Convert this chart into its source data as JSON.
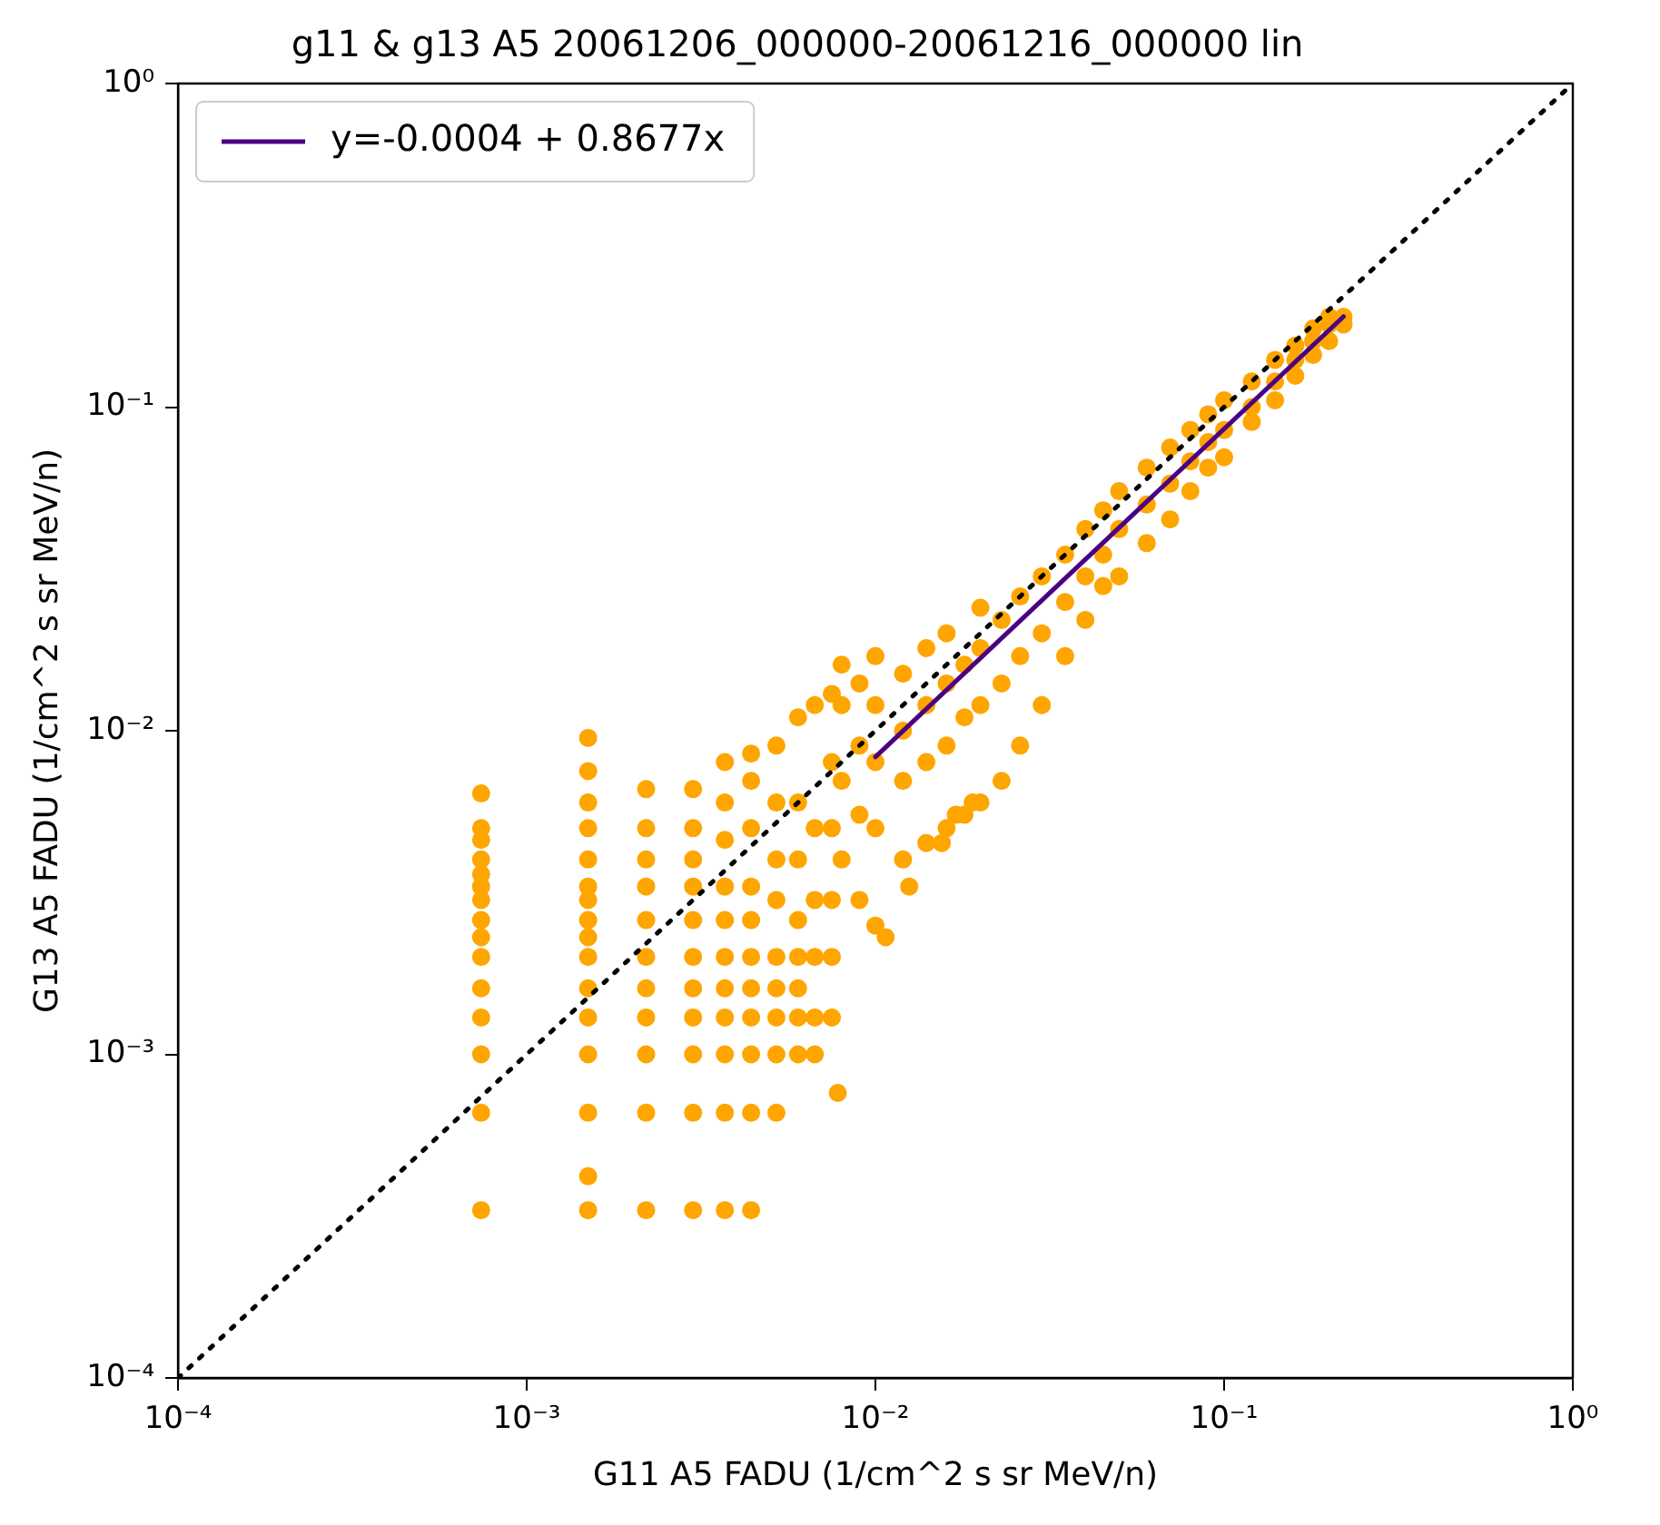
{
  "chart_data": {
    "type": "scatter",
    "title": "g11 & g13 A5 20061206_000000-20061216_000000 lin",
    "xlabel": "G11 A5 FADU (1/cm^2 s sr MeV/n)",
    "ylabel": "G13 A5 FADU (1/cm^2 s sr MeV/n)",
    "log": "xy",
    "grid": false,
    "legend": "top left",
    "xlim": [
      0.0001,
      1
    ],
    "ylim": [
      0.0001,
      1
    ],
    "xticks": [
      {
        "value": 0.0001,
        "label": "10⁻⁴"
      },
      {
        "value": 0.001,
        "label": "10⁻³"
      },
      {
        "value": 0.01,
        "label": "10⁻²"
      },
      {
        "value": 0.1,
        "label": "10⁻¹"
      },
      {
        "value": 1,
        "label": "10⁰"
      }
    ],
    "yticks": [
      {
        "value": 0.0001,
        "label": "10⁻⁴"
      },
      {
        "value": 0.001,
        "label": "10⁻³"
      },
      {
        "value": 0.01,
        "label": "10⁻²"
      },
      {
        "value": 0.1,
        "label": "10⁻¹"
      },
      {
        "value": 1,
        "label": "10⁰"
      }
    ],
    "series": [
      {
        "marker": "circle",
        "color": "#ffa500",
        "x": [
          0.00074,
          0.00074,
          0.00074,
          0.00074,
          0.00074,
          0.00074,
          0.00074,
          0.00074,
          0.00074,
          0.00074,
          0.00074,
          0.00074,
          0.00074,
          0.00074,
          0.00074,
          0.0015,
          0.0015,
          0.0015,
          0.0015,
          0.0015,
          0.0015,
          0.0015,
          0.0015,
          0.0015,
          0.0015,
          0.0015,
          0.0015,
          0.0015,
          0.0015,
          0.0015,
          0.0015,
          0.0022,
          0.0022,
          0.0022,
          0.0022,
          0.0022,
          0.0022,
          0.0022,
          0.0022,
          0.0022,
          0.0022,
          0.0022,
          0.003,
          0.003,
          0.003,
          0.003,
          0.003,
          0.003,
          0.003,
          0.003,
          0.003,
          0.003,
          0.003,
          0.0037,
          0.0037,
          0.0037,
          0.0037,
          0.0037,
          0.0037,
          0.0037,
          0.0037,
          0.0037,
          0.0037,
          0.0037,
          0.0044,
          0.0044,
          0.0044,
          0.0044,
          0.0044,
          0.0044,
          0.0044,
          0.0044,
          0.0044,
          0.0044,
          0.0044,
          0.0052,
          0.0052,
          0.0052,
          0.0052,
          0.0052,
          0.0052,
          0.0052,
          0.0052,
          0.0052,
          0.006,
          0.006,
          0.006,
          0.006,
          0.006,
          0.006,
          0.006,
          0.006,
          0.0067,
          0.0067,
          0.0067,
          0.0067,
          0.0067,
          0.0067,
          0.0075,
          0.0075,
          0.0075,
          0.0075,
          0.0075,
          0.0075,
          0.0078,
          0.008,
          0.008,
          0.008,
          0.008,
          0.009,
          0.009,
          0.009,
          0.009,
          0.01,
          0.01,
          0.01,
          0.01,
          0.01,
          0.0107,
          0.012,
          0.012,
          0.012,
          0.012,
          0.0125,
          0.014,
          0.014,
          0.014,
          0.014,
          0.0155,
          0.016,
          0.016,
          0.016,
          0.016,
          0.017,
          0.018,
          0.018,
          0.018,
          0.019,
          0.02,
          0.02,
          0.02,
          0.02,
          0.023,
          0.023,
          0.023,
          0.026,
          0.026,
          0.026,
          0.03,
          0.03,
          0.03,
          0.035,
          0.035,
          0.035,
          0.04,
          0.04,
          0.04,
          0.045,
          0.045,
          0.045,
          0.05,
          0.05,
          0.05,
          0.06,
          0.06,
          0.06,
          0.07,
          0.07,
          0.07,
          0.08,
          0.08,
          0.08,
          0.09,
          0.09,
          0.09,
          0.1,
          0.1,
          0.1,
          0.12,
          0.12,
          0.12,
          0.14,
          0.14,
          0.14,
          0.16,
          0.16,
          0.16,
          0.18,
          0.18,
          0.18,
          0.2,
          0.2,
          0.2,
          0.22,
          0.22
        ],
        "values": [
          0.00033,
          0.00066,
          0.001,
          0.0013,
          0.0016,
          0.002,
          0.0023,
          0.0026,
          0.003,
          0.0033,
          0.0036,
          0.004,
          0.0046,
          0.005,
          0.0064,
          0.00033,
          0.00042,
          0.00066,
          0.001,
          0.0013,
          0.0016,
          0.002,
          0.0023,
          0.0026,
          0.003,
          0.0033,
          0.004,
          0.005,
          0.006,
          0.0075,
          0.0095,
          0.00033,
          0.00066,
          0.001,
          0.0013,
          0.0016,
          0.002,
          0.0026,
          0.0033,
          0.004,
          0.005,
          0.0066,
          0.00033,
          0.00066,
          0.001,
          0.0013,
          0.0016,
          0.002,
          0.0026,
          0.0033,
          0.004,
          0.005,
          0.0066,
          0.00033,
          0.00066,
          0.001,
          0.0013,
          0.0016,
          0.002,
          0.0026,
          0.0033,
          0.0046,
          0.006,
          0.008,
          0.00033,
          0.00066,
          0.001,
          0.0013,
          0.0016,
          0.002,
          0.0026,
          0.0033,
          0.005,
          0.007,
          0.0085,
          0.00066,
          0.001,
          0.0013,
          0.0016,
          0.002,
          0.003,
          0.004,
          0.006,
          0.009,
          0.001,
          0.0013,
          0.0016,
          0.002,
          0.0026,
          0.004,
          0.006,
          0.011,
          0.001,
          0.0013,
          0.002,
          0.003,
          0.005,
          0.012,
          0.0013,
          0.002,
          0.003,
          0.005,
          0.008,
          0.013,
          0.00076,
          0.004,
          0.007,
          0.012,
          0.016,
          0.003,
          0.0055,
          0.009,
          0.014,
          0.0025,
          0.005,
          0.008,
          0.012,
          0.017,
          0.0023,
          0.004,
          0.007,
          0.01,
          0.015,
          0.0033,
          0.0045,
          0.008,
          0.012,
          0.018,
          0.0045,
          0.005,
          0.009,
          0.014,
          0.02,
          0.0055,
          0.0055,
          0.011,
          0.016,
          0.006,
          0.006,
          0.012,
          0.018,
          0.024,
          0.007,
          0.014,
          0.022,
          0.009,
          0.017,
          0.026,
          0.012,
          0.02,
          0.03,
          0.017,
          0.025,
          0.035,
          0.022,
          0.03,
          0.042,
          0.028,
          0.035,
          0.048,
          0.03,
          0.042,
          0.055,
          0.038,
          0.05,
          0.065,
          0.045,
          0.058,
          0.075,
          0.055,
          0.068,
          0.085,
          0.065,
          0.078,
          0.095,
          0.07,
          0.085,
          0.105,
          0.09,
          0.1,
          0.12,
          0.105,
          0.12,
          0.14,
          0.125,
          0.14,
          0.155,
          0.145,
          0.16,
          0.175,
          0.16,
          0.18,
          0.19,
          0.18,
          0.19
        ]
      },
      {
        "type": "line",
        "name": "y=-0.0004 + 0.8677x",
        "color": "#4b0082",
        "line_style": "solid",
        "x": [
          0.01,
          0.22
        ],
        "values": [
          0.0083,
          0.1905
        ]
      },
      {
        "type": "line",
        "color": "#000000",
        "line_style": "dotted",
        "x": [
          0.0001,
          1
        ],
        "values": [
          0.0001,
          1
        ]
      }
    ]
  }
}
